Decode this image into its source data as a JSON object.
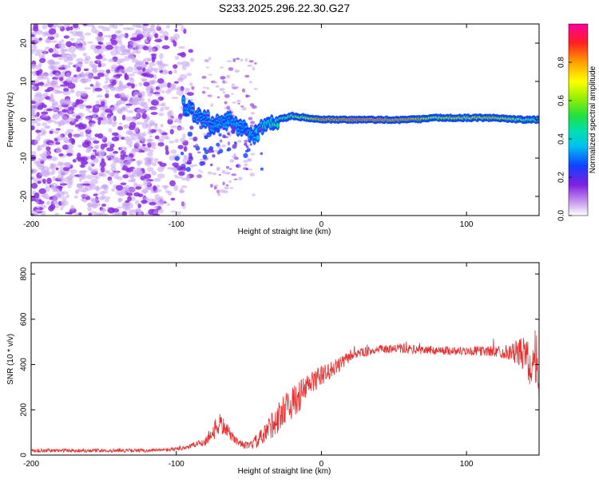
{
  "title": "S233.2025.296.22.30.G27",
  "colors": {
    "signal": "#e53030",
    "noise_dot": "#9040e0",
    "ridge_low": "#1060ff",
    "ridge_mid": "#30d050",
    "ridge_high": "#ff2030",
    "frame": "#000000"
  },
  "chart_data": [
    {
      "type": "heatmap",
      "title": "S233.2025.296.22.30.G27",
      "xlabel": "Height of straight line (km)",
      "ylabel": "Frequency (Hz)",
      "xlim": [
        -200,
        150
      ],
      "ylim": [
        -25,
        25
      ],
      "x_ticks": [
        -200,
        -100,
        0,
        100
      ],
      "y_ticks": [
        -20,
        -10,
        0,
        10,
        20
      ],
      "x_tick_labels": [
        "-200",
        "-100",
        "0",
        "100"
      ],
      "y_tick_labels": [
        "-20",
        "-10",
        "0",
        "10",
        "20"
      ],
      "colorbar": {
        "label": "Normalized spectral amplitude",
        "range": [
          0,
          1
        ],
        "ticks": [
          0.0,
          0.2,
          0.4,
          0.6,
          0.8
        ],
        "tick_labels": [
          "0.0",
          "0.2",
          "0.4",
          "0.6",
          "0.8"
        ]
      },
      "ridge": {
        "description": "Dominant frequency track",
        "x": [
          -95,
          -85,
          -75,
          -65,
          -55,
          -45,
          -38,
          -30,
          -20,
          -10,
          0,
          20,
          40,
          60,
          80,
          100,
          120,
          140,
          150
        ],
        "freq": [
          4,
          1,
          -1,
          0,
          -2,
          -4,
          -1,
          0,
          1,
          0.5,
          0,
          0,
          0,
          0,
          0.5,
          0.5,
          0.5,
          0,
          0
        ],
        "amplitude": [
          0.25,
          0.2,
          0.25,
          0.3,
          0.3,
          0.3,
          0.45,
          0.5,
          0.6,
          0.7,
          0.85,
          0.9,
          0.9,
          0.85,
          0.7,
          0.7,
          0.75,
          0.6,
          0.55
        ]
      },
      "noise_region_x": [
        -200,
        -90
      ]
    },
    {
      "type": "line",
      "xlabel": "Height of straight line (km)",
      "ylabel": "SNR (10 * v/v)",
      "xlim": [
        -200,
        150
      ],
      "ylim": [
        0,
        850
      ],
      "x_ticks": [
        -200,
        -100,
        0,
        100
      ],
      "y_ticks": [
        0,
        200,
        400,
        600,
        800
      ],
      "x_tick_labels": [
        "-200",
        "-100",
        "0",
        "100"
      ],
      "y_tick_labels": [
        "0",
        "200",
        "400",
        "600",
        "800"
      ],
      "series": [
        {
          "name": "SNR",
          "x": [
            -200,
            -180,
            -160,
            -140,
            -120,
            -110,
            -100,
            -90,
            -80,
            -75,
            -70,
            -65,
            -60,
            -55,
            -50,
            -45,
            -40,
            -35,
            -30,
            -25,
            -20,
            -15,
            -10,
            -5,
            0,
            5,
            10,
            15,
            20,
            25,
            30,
            40,
            50,
            60,
            80,
            100,
            120,
            130,
            140,
            145,
            150
          ],
          "y": [
            20,
            20,
            20,
            20,
            20,
            22,
            25,
            40,
            60,
            100,
            140,
            110,
            70,
            50,
            40,
            60,
            80,
            130,
            160,
            210,
            230,
            260,
            300,
            330,
            350,
            370,
            390,
            410,
            440,
            450,
            455,
            465,
            470,
            468,
            462,
            460,
            458,
            455,
            450,
            420,
            400
          ],
          "noise": [
            8,
            8,
            8,
            8,
            8,
            8,
            10,
            12,
            20,
            40,
            50,
            30,
            20,
            15,
            15,
            30,
            45,
            60,
            70,
            70,
            70,
            70,
            60,
            50,
            45,
            40,
            35,
            30,
            25,
            20,
            20,
            20,
            20,
            20,
            20,
            20,
            25,
            35,
            80,
            160,
            120
          ]
        }
      ]
    }
  ]
}
